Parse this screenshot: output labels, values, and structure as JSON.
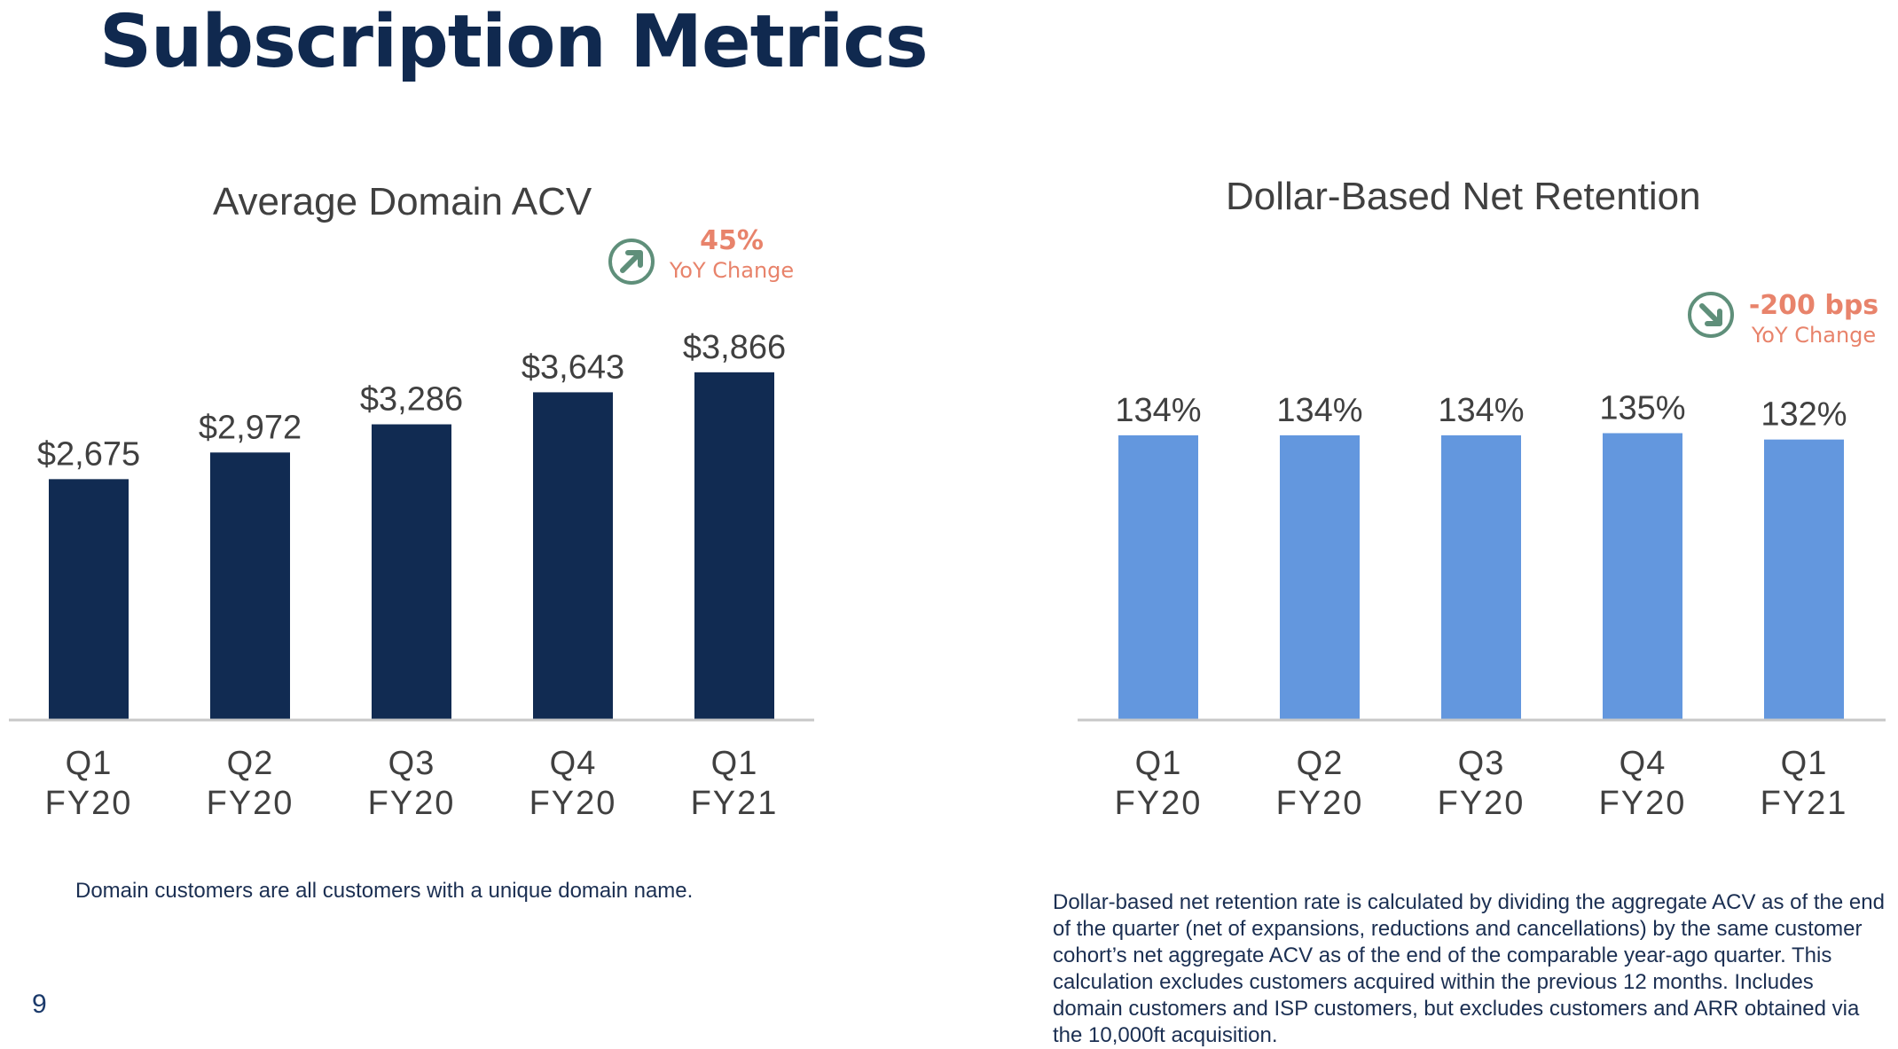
{
  "page": {
    "title": "Subscription Metrics",
    "page_number": "9"
  },
  "charts": [
    {
      "title": "Average Domain ACV",
      "callout": {
        "value": "45%",
        "label": "YoY Change",
        "direction": "up-right-arrow-icon"
      },
      "footnote": "Domain customers are all customers with a unique domain name.",
      "bar_color": "#112b52"
    },
    {
      "title": "Dollar-Based Net Retention",
      "callout": {
        "value": "-200 bps",
        "label": "YoY Change",
        "direction": "down-right-arrow-icon"
      },
      "footnote": "Dollar-based net retention rate is calculated by dividing the aggregate ACV as of the end of the quarter (net of expansions, reductions and cancellations) by the same customer cohort’s net aggregate ACV as of the end of the comparable year-ago quarter. This calculation excludes customers acquired within the previous 12 months. Includes domain customers and ISP customers, but excludes customers and ARR obtained via the 10,000ft acquisition.",
      "bar_color": "#6397de"
    }
  ],
  "chart_data": [
    {
      "type": "bar",
      "title": "Average Domain ACV",
      "categories": [
        [
          "Q1",
          "FY20"
        ],
        [
          "Q2",
          "FY20"
        ],
        [
          "Q3",
          "FY20"
        ],
        [
          "Q4",
          "FY20"
        ],
        [
          "Q1",
          "FY21"
        ]
      ],
      "values": [
        2675,
        2972,
        3286,
        3643,
        3866
      ],
      "value_labels": [
        "$2,675",
        "$2,972",
        "$3,286",
        "$3,643",
        "$3,866"
      ],
      "ylim": [
        0,
        4250
      ],
      "grid": false,
      "xlabel": "",
      "ylabel": ""
    },
    {
      "type": "bar",
      "title": "Dollar-Based Net Retention",
      "categories": [
        [
          "Q1",
          "FY20"
        ],
        [
          "Q2",
          "FY20"
        ],
        [
          "Q3",
          "FY20"
        ],
        [
          "Q4",
          "FY20"
        ],
        [
          "Q1",
          "FY21"
        ]
      ],
      "values": [
        134,
        134,
        134,
        135,
        132
      ],
      "value_labels": [
        "134%",
        "134%",
        "134%",
        "135%",
        "132%"
      ],
      "ylim": [
        0,
        180
      ],
      "grid": false,
      "xlabel": "",
      "ylabel": ""
    }
  ]
}
